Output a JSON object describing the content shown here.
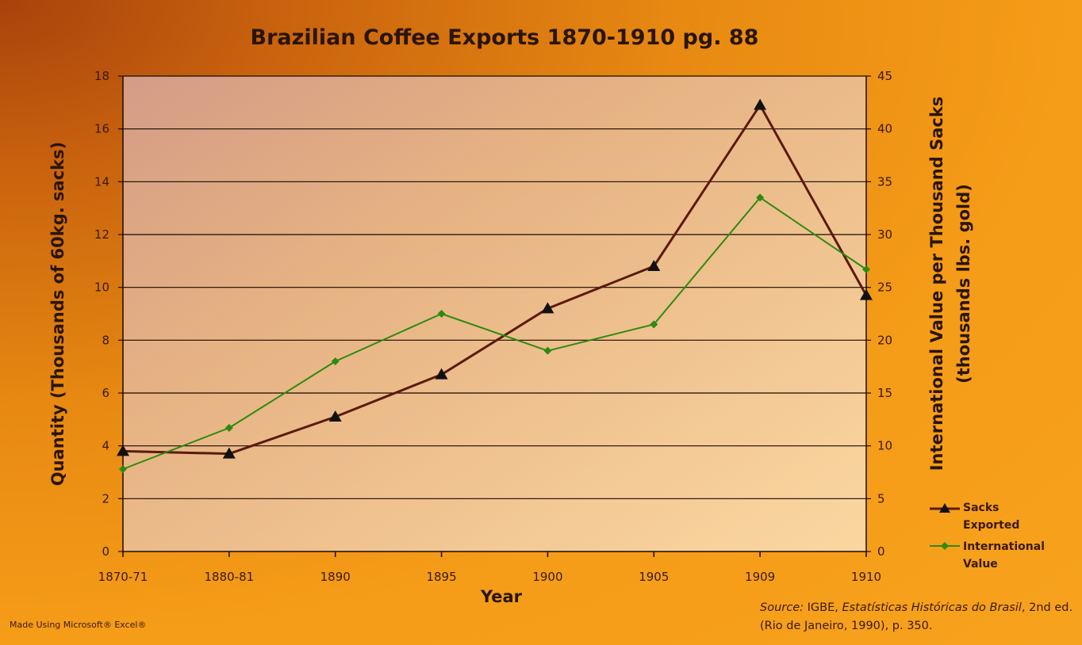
{
  "chart_data": {
    "type": "line",
    "title": "Brazilian Coffee Exports 1870-1910 pg. 88",
    "xlabel": "Year",
    "ylabel_left": "Quantity (Thousands of 60kg. sacks)",
    "ylabel_right_line1": "International Value per Thousand Sacks",
    "ylabel_right_line2": "(thousands lbs. gold)",
    "categories": [
      "1870-71",
      "1880-81",
      "1890",
      "1895",
      "1900",
      "1905",
      "1909",
      "1910"
    ],
    "y_left": {
      "min": 0,
      "max": 18,
      "step": 2,
      "ticks": [
        "0",
        "2",
        "4",
        "6",
        "8",
        "10",
        "12",
        "14",
        "16",
        "18"
      ]
    },
    "y_right": {
      "min": 0,
      "max": 45,
      "step": 5,
      "ticks": [
        "0",
        "5",
        "10",
        "15",
        "20",
        "25",
        "30",
        "35",
        "40",
        "45"
      ]
    },
    "grid": true,
    "legend_position": "right",
    "series": [
      {
        "name_line1": "Sacks",
        "name_line2": "Exported",
        "axis": "left",
        "marker": "triangle",
        "color": "#5a1a0a",
        "values": [
          3.8,
          3.7,
          5.1,
          6.7,
          9.2,
          10.8,
          16.9,
          9.7
        ]
      },
      {
        "name_line1": "International",
        "name_line2": "Value",
        "axis": "right",
        "marker": "diamond",
        "color": "#2e8a10",
        "values": [
          7.8,
          11.7,
          18.0,
          22.5,
          19.0,
          21.5,
          33.5,
          26.7
        ]
      }
    ]
  },
  "footer": {
    "made_using": "Made Using Microsoft® Excel®",
    "source_label": "Source:",
    "source_org": " IGBE, ",
    "source_title": "Estatísticas Históricas do Brasil",
    "source_rest": ", 2nd ed. (Rio de Janeiro, 1990), p. 350."
  }
}
